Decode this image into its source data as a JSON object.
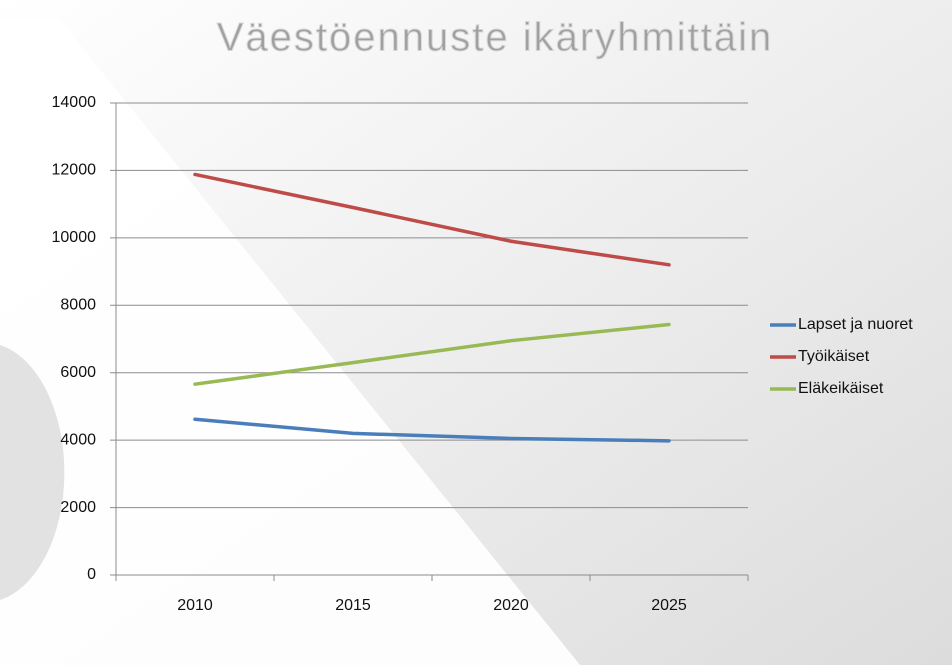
{
  "chart_data": {
    "type": "line",
    "title": "Väestöennuste ikäryhmittäin",
    "categories": [
      "2010",
      "2015",
      "2020",
      "2025"
    ],
    "series": [
      {
        "name": "Lapset ja nuoret",
        "color": "#4a7ebb",
        "values": [
          4620,
          4200,
          4050,
          3980
        ]
      },
      {
        "name": "Työikäiset",
        "color": "#be4b48",
        "values": [
          11880,
          10900,
          9900,
          9200
        ]
      },
      {
        "name": "Eläkeikäiset",
        "color": "#98b954",
        "values": [
          5660,
          6300,
          6950,
          7430
        ]
      }
    ],
    "ylim": [
      0,
      14000
    ],
    "yticks": [
      0,
      2000,
      4000,
      6000,
      8000,
      10000,
      12000,
      14000
    ],
    "grid": true,
    "legend": "right"
  }
}
